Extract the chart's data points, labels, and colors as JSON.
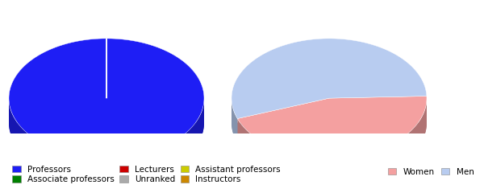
{
  "left_pie": {
    "labels": [
      "Professors",
      "Associate professors",
      "Lecturers",
      "Unranked",
      "Assistant professors",
      "Instructors"
    ],
    "values": [
      100,
      0.001,
      0.001,
      0.001,
      0.001,
      0.001
    ],
    "colors": [
      "#1e1ef5",
      "#008000",
      "#cc0000",
      "#aaaaaa",
      "#cccc00",
      "#cc8800"
    ],
    "startangle": 90
  },
  "right_pie": {
    "labels": [
      "Women",
      "Men"
    ],
    "values": [
      45,
      55
    ],
    "colors": [
      "#f4a0a0",
      "#b8ccf0"
    ],
    "startangle": 200
  },
  "legend_left": {
    "items": [
      "Professors",
      "Associate professors",
      "Lecturers",
      "Unranked",
      "Assistant professors",
      "Instructors"
    ],
    "colors": [
      "#1e1ef5",
      "#008000",
      "#cc0000",
      "#aaaaaa",
      "#cccc00",
      "#cc8800"
    ]
  },
  "legend_right": {
    "items": [
      "Women",
      "Men"
    ],
    "colors": [
      "#f4a0a0",
      "#b8ccf0"
    ]
  },
  "background_color": "#ffffff"
}
